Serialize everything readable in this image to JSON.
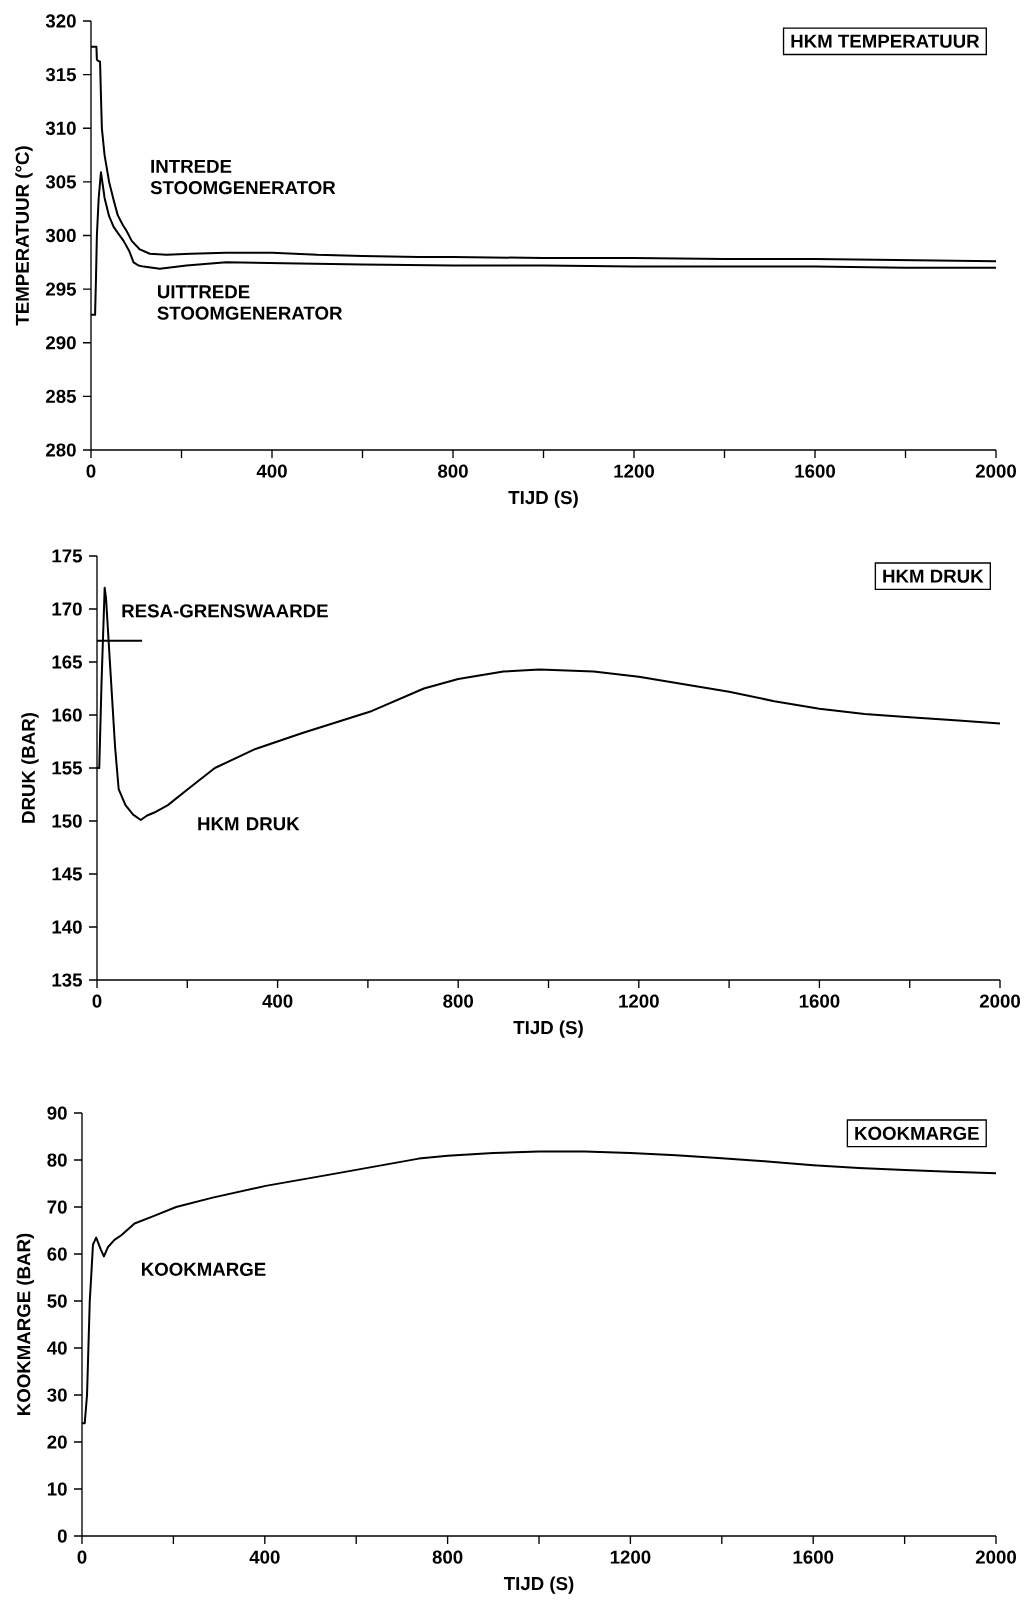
{
  "chart_data": [
    {
      "type": "line",
      "title": "HKM TEMPERATUUR",
      "xlabel": "TIJD (S)",
      "ylabel": "TEMPERATUUR (°C)",
      "xlim": [
        0,
        2000
      ],
      "ylim": [
        280,
        320
      ],
      "xticks": [
        0,
        {
          "value": 200,
          "label": null
        },
        400,
        {
          "value": 600,
          "label": null
        },
        800,
        {
          "value": 1000,
          "label": null
        },
        1200,
        {
          "value": 1400,
          "label": null
        },
        1600,
        {
          "value": 1800,
          "label": null
        },
        2000
      ],
      "yticks": [
        280,
        285,
        290,
        295,
        300,
        305,
        310,
        315,
        320
      ],
      "series": [
        {
          "name": "INTREDE STOOMGENERATOR",
          "color": "#000000",
          "x": [
            0,
            12,
            13,
            15,
            20,
            22,
            24,
            30,
            40,
            50,
            59,
            70,
            79,
            90,
            108,
            130,
            167,
            220,
            299,
            400,
            500,
            600,
            724,
            800,
            1000,
            1200,
            1400,
            1600,
            1800,
            2000
          ],
          "values": [
            317.6,
            317.6,
            316.4,
            316.3,
            316.2,
            313,
            310,
            307.5,
            305,
            303.3,
            301.9,
            301,
            300.4,
            299.5,
            298.7,
            298.3,
            298.2,
            298.3,
            298.4,
            298.4,
            298.2,
            298.1,
            298.0,
            298.0,
            297.9,
            297.9,
            297.8,
            297.8,
            297.7,
            297.6
          ]
        },
        {
          "name": "UITTREDE STOOMGENERATOR",
          "color": "#000000",
          "x": [
            0,
            9,
            11,
            13,
            17,
            22,
            30,
            40,
            50,
            60,
            72,
            85,
            94,
            105,
            116,
            152,
            211,
            299,
            460,
            600,
            800,
            1000,
            1200,
            1400,
            1600,
            1800,
            2000
          ],
          "values": [
            292.6,
            292.6,
            296,
            300,
            303.5,
            305.9,
            303.5,
            301.8,
            300.8,
            300.2,
            299.5,
            298.5,
            297.5,
            297.2,
            297.1,
            296.9,
            297.2,
            297.5,
            297.4,
            297.3,
            297.2,
            297.2,
            297.1,
            297.1,
            297.1,
            297.0,
            297.0
          ]
        }
      ]
    },
    {
      "type": "line",
      "title": "HKM DRUK",
      "xlabel": "TIJD (S)",
      "ylabel": "DRUK (BAR)",
      "xlim": [
        0,
        2000
      ],
      "ylim": [
        135,
        175
      ],
      "xticks": [
        0,
        {
          "value": 200,
          "label": null
        },
        400,
        {
          "value": 600,
          "label": null
        },
        800,
        {
          "value": 1000,
          "label": null
        },
        1200,
        {
          "value": 1400,
          "label": null
        },
        1600,
        {
          "value": 1800,
          "label": null
        },
        2000
      ],
      "yticks": [
        135,
        140,
        145,
        150,
        155,
        160,
        165,
        170,
        175
      ],
      "series": [
        {
          "name": "HKM DRUK",
          "color": "#000000",
          "x": [
            0,
            5,
            10,
            17,
            20,
            30,
            40,
            48,
            63,
            80,
            97,
            110,
            127,
            157,
            201,
            261,
            351,
            455,
            604,
            724,
            800,
            900,
            980,
            1100,
            1200,
            1300,
            1400,
            1500,
            1600,
            1700,
            1800,
            1900,
            2000
          ],
          "values": [
            155,
            155,
            163,
            172,
            171,
            164,
            157,
            153,
            151.5,
            150.6,
            150.1,
            150.5,
            150.8,
            151.5,
            153,
            155,
            156.8,
            158.3,
            160.3,
            162.5,
            163.4,
            164.1,
            164.3,
            164.1,
            163.6,
            162.9,
            162.2,
            161.3,
            160.6,
            160.1,
            159.8,
            159.5,
            159.2
          ]
        },
        {
          "name": "RESA-GRENSWAARDE",
          "color": "#000000",
          "x": [
            0,
            100
          ],
          "values": [
            167,
            167
          ]
        }
      ]
    },
    {
      "type": "line",
      "title": "KOOKMARGE",
      "xlabel": "TIJD (S)",
      "ylabel": "KOOKMARGE (BAR)",
      "xlim": [
        0,
        2000
      ],
      "ylim": [
        0,
        90
      ],
      "xticks": [
        0,
        {
          "value": 200,
          "label": null
        },
        400,
        {
          "value": 600,
          "label": null
        },
        800,
        {
          "value": 1000,
          "label": null
        },
        1200,
        {
          "value": 1400,
          "label": null
        },
        1600,
        {
          "value": 1800,
          "label": null
        },
        2000
      ],
      "yticks": [
        0,
        10,
        20,
        30,
        40,
        50,
        60,
        70,
        80,
        90
      ],
      "series": [
        {
          "name": "KOOKMARGE",
          "color": "#000000",
          "x": [
            0,
            6,
            11,
            17,
            20,
            24,
            31,
            41,
            48,
            57,
            71,
            86,
            115,
            155,
            206,
            286,
            402,
            548,
            737,
            800,
            900,
            1000,
            1100,
            1200,
            1300,
            1400,
            1500,
            1600,
            1700,
            1800,
            1900,
            2000
          ],
          "values": [
            24,
            24,
            30,
            50,
            55,
            62,
            63.5,
            61,
            59.5,
            61.5,
            63,
            64,
            66.5,
            68,
            70,
            72,
            74.5,
            77,
            80.3,
            80.9,
            81.5,
            81.8,
            81.8,
            81.5,
            81,
            80.4,
            79.7,
            78.9,
            78.3,
            77.9,
            77.5,
            77.2
          ]
        }
      ]
    }
  ]
}
